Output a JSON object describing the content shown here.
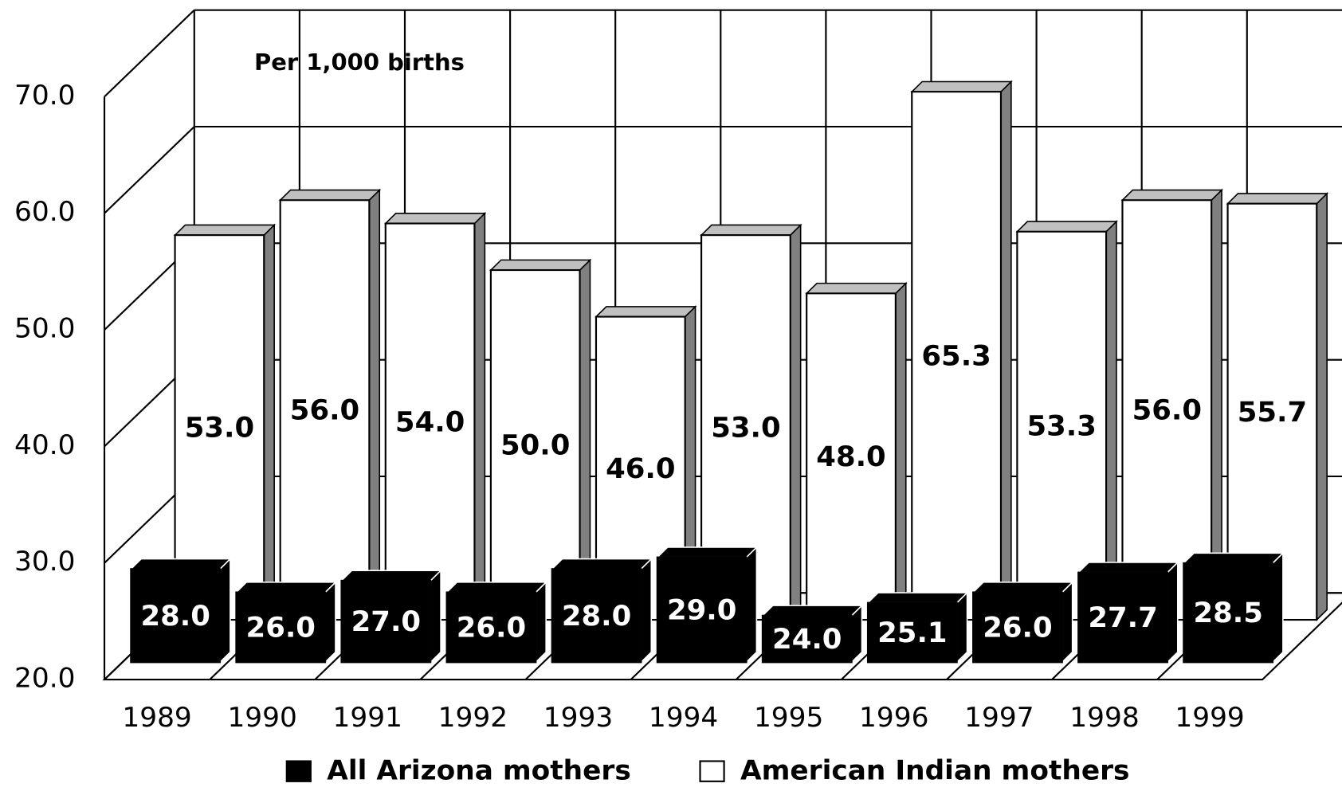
{
  "chart_data": {
    "type": "bar3d",
    "subtitle": "Per 1,000 births",
    "categories": [
      "1989",
      "1990",
      "1991",
      "1992",
      "1993",
      "1994",
      "1995",
      "1996",
      "1997",
      "1998",
      "1999"
    ],
    "series": [
      {
        "name": "All Arizona mothers",
        "color": "#000000",
        "values": [
          28.0,
          26.0,
          27.0,
          26.0,
          28.0,
          29.0,
          24.0,
          25.1,
          26.0,
          27.7,
          28.5
        ],
        "value_labels": [
          "28.0",
          "26.0",
          "27.0",
          "26.0",
          "28.0",
          "29.0",
          "24.0",
          "25.1",
          "26.0",
          "27.7",
          "28.5"
        ]
      },
      {
        "name": "American Indian mothers",
        "color": "#ffffff",
        "values": [
          53.0,
          56.0,
          54.0,
          50.0,
          46.0,
          53.0,
          48.0,
          65.3,
          53.3,
          56.0,
          55.7
        ],
        "value_labels": [
          "53.0",
          "56.0",
          "54.0",
          "50.0",
          "46.0",
          "53.0",
          "48.0",
          "65.3",
          "53.3",
          "56.0",
          "55.7"
        ]
      }
    ],
    "ylim": [
      20,
      70
    ],
    "yticks": [
      {
        "value": 20,
        "label": "20.0"
      },
      {
        "value": 30,
        "label": "30.0"
      },
      {
        "value": 40,
        "label": "40.0"
      },
      {
        "value": 50,
        "label": "50.0"
      },
      {
        "value": 60,
        "label": "60.0"
      },
      {
        "value": 70,
        "label": "70.0"
      }
    ],
    "grid": true,
    "legend": "bottom"
  }
}
